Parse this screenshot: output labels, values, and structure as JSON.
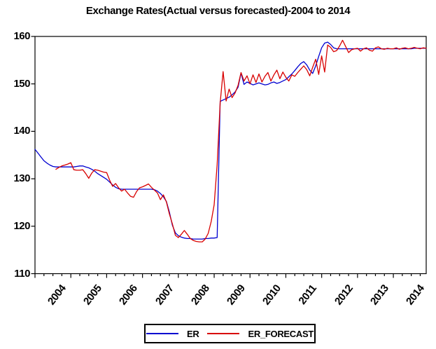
{
  "title": "Exchange Rates(Actual versus forecasted)-2004 to 2014",
  "chart_data": {
    "type": "line",
    "title": "Exchange Rates(Actual versus forecasted)-2004 to 2014",
    "x_unit": "month",
    "x_start": "2004M01",
    "x_end": "2014M12",
    "year_labels": [
      "2004",
      "2005",
      "2006",
      "2007",
      "2008",
      "2009",
      "2010",
      "2011",
      "2012",
      "2013",
      "2014"
    ],
    "y_ticks": [
      110,
      120,
      130,
      140,
      150,
      160
    ],
    "ylim": [
      110,
      160
    ],
    "grid": false,
    "legend_position": "bottom",
    "axis_color": "#000000",
    "series": [
      {
        "name": "ER",
        "color": "#0000d0",
        "values": [
          136.2,
          135.4,
          134.6,
          133.8,
          133.3,
          132.9,
          132.6,
          132.5,
          132.5,
          132.5,
          132.5,
          132.5,
          132.5,
          132.5,
          132.6,
          132.7,
          132.7,
          132.5,
          132.3,
          132.0,
          131.6,
          131.1,
          130.7,
          130.3,
          129.9,
          129.3,
          128.7,
          128.2,
          127.9,
          127.8,
          127.8,
          127.8,
          127.8,
          127.8,
          127.8,
          127.8,
          127.8,
          127.8,
          127.8,
          127.8,
          127.7,
          127.4,
          126.9,
          126.2,
          125.2,
          123.0,
          120.2,
          118.6,
          118.0,
          117.7,
          117.5,
          117.4,
          117.4,
          117.3,
          117.3,
          117.3,
          117.3,
          117.4,
          117.4,
          117.5,
          117.5,
          117.6,
          146.3,
          146.6,
          146.9,
          147.2,
          147.7,
          148.3,
          149.3,
          152.3,
          149.9,
          150.4,
          150.1,
          149.8,
          150.0,
          150.2,
          150.0,
          149.8,
          149.9,
          150.2,
          150.4,
          150.1,
          150.3,
          150.6,
          150.9,
          151.5,
          152.1,
          152.8,
          153.6,
          154.3,
          154.7,
          154.0,
          152.9,
          152.2,
          153.8,
          155.8,
          157.6,
          158.6,
          158.8,
          158.3,
          157.6,
          157.4,
          157.4,
          157.4,
          157.4,
          157.4,
          157.4,
          157.4,
          157.4,
          157.4,
          157.4,
          157.4,
          157.4,
          157.4,
          157.4,
          157.4,
          157.4,
          157.4,
          157.4,
          157.4,
          157.4,
          157.4,
          157.4,
          157.4,
          157.4,
          157.4,
          157.4,
          157.5,
          157.5,
          157.5,
          157.5,
          157.5
        ]
      },
      {
        "name": "ER_FORECAST",
        "color": "#d80000",
        "values": [
          null,
          null,
          null,
          null,
          null,
          null,
          null,
          132.0,
          132.4,
          132.7,
          132.9,
          133.1,
          133.4,
          131.9,
          131.8,
          131.8,
          131.9,
          131.1,
          130.1,
          131.2,
          131.9,
          131.8,
          131.6,
          131.4,
          131.3,
          129.7,
          128.4,
          129.0,
          128.1,
          127.4,
          127.8,
          127.0,
          126.3,
          126.1,
          127.3,
          128.1,
          128.3,
          128.6,
          128.9,
          128.2,
          127.6,
          127.0,
          125.6,
          126.6,
          125.1,
          122.6,
          120.5,
          118.1,
          117.6,
          118.3,
          119.1,
          118.3,
          117.4,
          117.0,
          116.8,
          116.7,
          116.7,
          117.3,
          118.5,
          121.0,
          124.5,
          133.0,
          146.0,
          152.6,
          146.4,
          148.9,
          147.1,
          148.1,
          149.7,
          152.4,
          150.6,
          151.7,
          150.0,
          151.9,
          150.3,
          152.1,
          150.4,
          151.6,
          152.4,
          150.6,
          151.9,
          152.9,
          151.1,
          152.5,
          151.4,
          150.6,
          151.9,
          151.6,
          152.4,
          153.1,
          153.8,
          153.0,
          151.7,
          153.5,
          155.2,
          152.0,
          155.9,
          152.5,
          158.2,
          157.7,
          156.8,
          157.0,
          158.0,
          159.2,
          157.9,
          156.6,
          157.2,
          157.4,
          157.5,
          156.9,
          157.4,
          157.6,
          157.1,
          156.9,
          157.6,
          157.8,
          157.4,
          157.3,
          157.5,
          157.4,
          157.4,
          157.6,
          157.3,
          157.5,
          157.6,
          157.4,
          157.5,
          157.7,
          157.5,
          157.4,
          157.6,
          157.5
        ]
      }
    ]
  },
  "legend": {
    "items": [
      {
        "label": "ER"
      },
      {
        "label": "ER_FORECAST"
      }
    ]
  }
}
